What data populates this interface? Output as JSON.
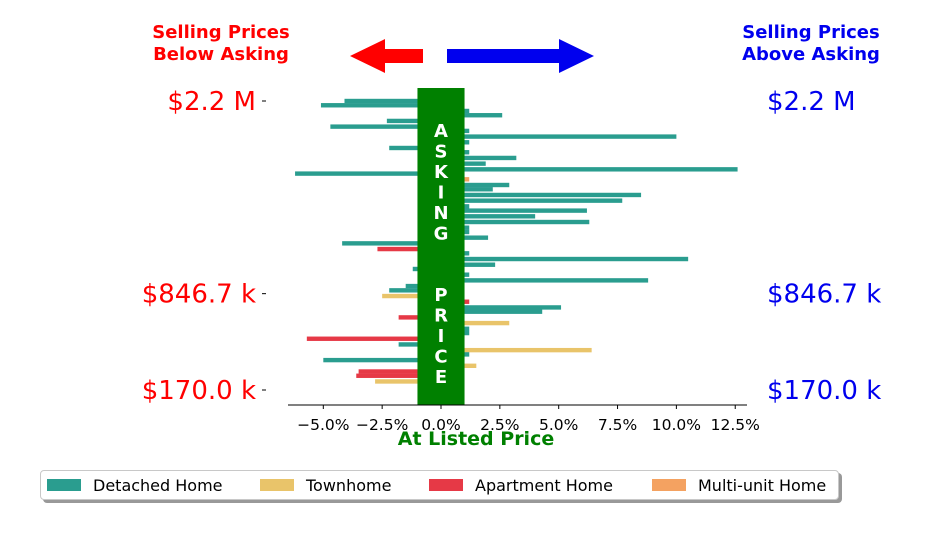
{
  "chart_data": {
    "type": "bar",
    "orientation": "horizontal",
    "xlabel": "At Listed Price",
    "xlim": [
      -6.5,
      13
    ],
    "xticks": [
      "−5.0%",
      "−2.5%",
      "0.0%",
      "2.5%",
      "5.0%",
      "7.5%",
      "10.0%",
      "12.5%"
    ],
    "xtick_values": [
      -5,
      -2.5,
      0,
      2.5,
      5,
      7.5,
      10,
      12.5
    ],
    "ylim": [
      170000,
      2200000
    ],
    "yticks_left": [
      "$2.2 M",
      "$846.7 k",
      "$170.0 k"
    ],
    "yticks_right": [
      "$2.2 M",
      "$846.7 k",
      "$170.0 k"
    ],
    "ytick_values": [
      2200000,
      846700,
      170000
    ],
    "left_header": "Selling Prices\nBelow Asking",
    "right_header": "Selling Prices\nAbove Asking",
    "center_band_text": "ASKING  PRICE",
    "center_band_range": [
      -1,
      1
    ],
    "legend_position": "bottom",
    "series_names": [
      "Detached Home",
      "Townhome",
      "Apartment Home",
      "Multi-unit Home"
    ],
    "colors": {
      "Detached Home": "#2a9d8f",
      "Townhome": "#e9c46a",
      "Apartment Home": "#e63946",
      "Multi-unit Home": "#f4a261",
      "below": "#ff0000",
      "above": "#0000ee",
      "band": "#008000"
    },
    "bars": [
      {
        "price": 2200000,
        "pct": -4.1,
        "type": "Detached Home"
      },
      {
        "price": 2170000,
        "pct": -5.1,
        "type": "Detached Home"
      },
      {
        "price": 2130000,
        "pct": 1.2,
        "type": "Detached Home"
      },
      {
        "price": 2100000,
        "pct": 2.6,
        "type": "Detached Home"
      },
      {
        "price": 2060000,
        "pct": -2.3,
        "type": "Detached Home"
      },
      {
        "price": 2020000,
        "pct": -4.7,
        "type": "Detached Home"
      },
      {
        "price": 1990000,
        "pct": 1.2,
        "type": "Detached Home"
      },
      {
        "price": 1950000,
        "pct": 10.0,
        "type": "Detached Home"
      },
      {
        "price": 1910000,
        "pct": 1.2,
        "type": "Detached Home"
      },
      {
        "price": 1870000,
        "pct": -2.2,
        "type": "Detached Home"
      },
      {
        "price": 1840000,
        "pct": 1.2,
        "type": "Detached Home"
      },
      {
        "price": 1800000,
        "pct": 3.2,
        "type": "Detached Home"
      },
      {
        "price": 1760000,
        "pct": 1.9,
        "type": "Detached Home"
      },
      {
        "price": 1720000,
        "pct": 12.6,
        "type": "Detached Home"
      },
      {
        "price": 1690000,
        "pct": -6.2,
        "type": "Detached Home"
      },
      {
        "price": 1650000,
        "pct": 1.2,
        "type": "Multi-unit Home"
      },
      {
        "price": 1610000,
        "pct": 2.9,
        "type": "Detached Home"
      },
      {
        "price": 1580000,
        "pct": 2.2,
        "type": "Detached Home"
      },
      {
        "price": 1540000,
        "pct": 8.5,
        "type": "Detached Home"
      },
      {
        "price": 1500000,
        "pct": 7.7,
        "type": "Detached Home"
      },
      {
        "price": 1460000,
        "pct": 1.2,
        "type": "Detached Home"
      },
      {
        "price": 1430000,
        "pct": 6.2,
        "type": "Detached Home"
      },
      {
        "price": 1390000,
        "pct": 4.0,
        "type": "Detached Home"
      },
      {
        "price": 1350000,
        "pct": 6.3,
        "type": "Detached Home"
      },
      {
        "price": 1310000,
        "pct": 1.2,
        "type": "Detached Home"
      },
      {
        "price": 1280000,
        "pct": 1.2,
        "type": "Detached Home"
      },
      {
        "price": 1240000,
        "pct": 2.0,
        "type": "Detached Home"
      },
      {
        "price": 1200000,
        "pct": -4.2,
        "type": "Detached Home"
      },
      {
        "price": 1160000,
        "pct": -2.7,
        "type": "Apartment Home"
      },
      {
        "price": 1130000,
        "pct": 1.2,
        "type": "Detached Home"
      },
      {
        "price": 1090000,
        "pct": 10.5,
        "type": "Detached Home"
      },
      {
        "price": 1050000,
        "pct": 2.3,
        "type": "Detached Home"
      },
      {
        "price": 1020000,
        "pct": -1.2,
        "type": "Detached Home"
      },
      {
        "price": 980000,
        "pct": 1.2,
        "type": "Detached Home"
      },
      {
        "price": 940000,
        "pct": 8.8,
        "type": "Detached Home"
      },
      {
        "price": 900000,
        "pct": -1.5,
        "type": "Detached Home"
      },
      {
        "price": 870000,
        "pct": -2.2,
        "type": "Detached Home"
      },
      {
        "price": 830000,
        "pct": -2.5,
        "type": "Townhome"
      },
      {
        "price": 790000,
        "pct": 1.2,
        "type": "Apartment Home"
      },
      {
        "price": 750000,
        "pct": 5.1,
        "type": "Detached Home"
      },
      {
        "price": 720000,
        "pct": 4.3,
        "type": "Detached Home"
      },
      {
        "price": 680000,
        "pct": -1.8,
        "type": "Apartment Home"
      },
      {
        "price": 640000,
        "pct": 2.9,
        "type": "Townhome"
      },
      {
        "price": 600000,
        "pct": 1.2,
        "type": "Detached Home"
      },
      {
        "price": 570000,
        "pct": 1.2,
        "type": "Detached Home"
      },
      {
        "price": 530000,
        "pct": -5.7,
        "type": "Apartment Home"
      },
      {
        "price": 490000,
        "pct": -1.8,
        "type": "Detached Home"
      },
      {
        "price": 450000,
        "pct": 6.4,
        "type": "Townhome"
      },
      {
        "price": 420000,
        "pct": 1.2,
        "type": "Detached Home"
      },
      {
        "price": 380000,
        "pct": -5.0,
        "type": "Detached Home"
      },
      {
        "price": 340000,
        "pct": 1.5,
        "type": "Townhome"
      },
      {
        "price": 300000,
        "pct": -3.5,
        "type": "Apartment Home"
      },
      {
        "price": 270000,
        "pct": -3.6,
        "type": "Apartment Home"
      },
      {
        "price": 230000,
        "pct": -2.8,
        "type": "Townhome"
      }
    ]
  },
  "legend": [
    {
      "label": "Detached Home",
      "color": "#2a9d8f"
    },
    {
      "label": "Townhome",
      "color": "#e9c46a"
    },
    {
      "label": "Apartment Home",
      "color": "#e63946"
    },
    {
      "label": "Multi-unit Home",
      "color": "#f4a261"
    }
  ]
}
